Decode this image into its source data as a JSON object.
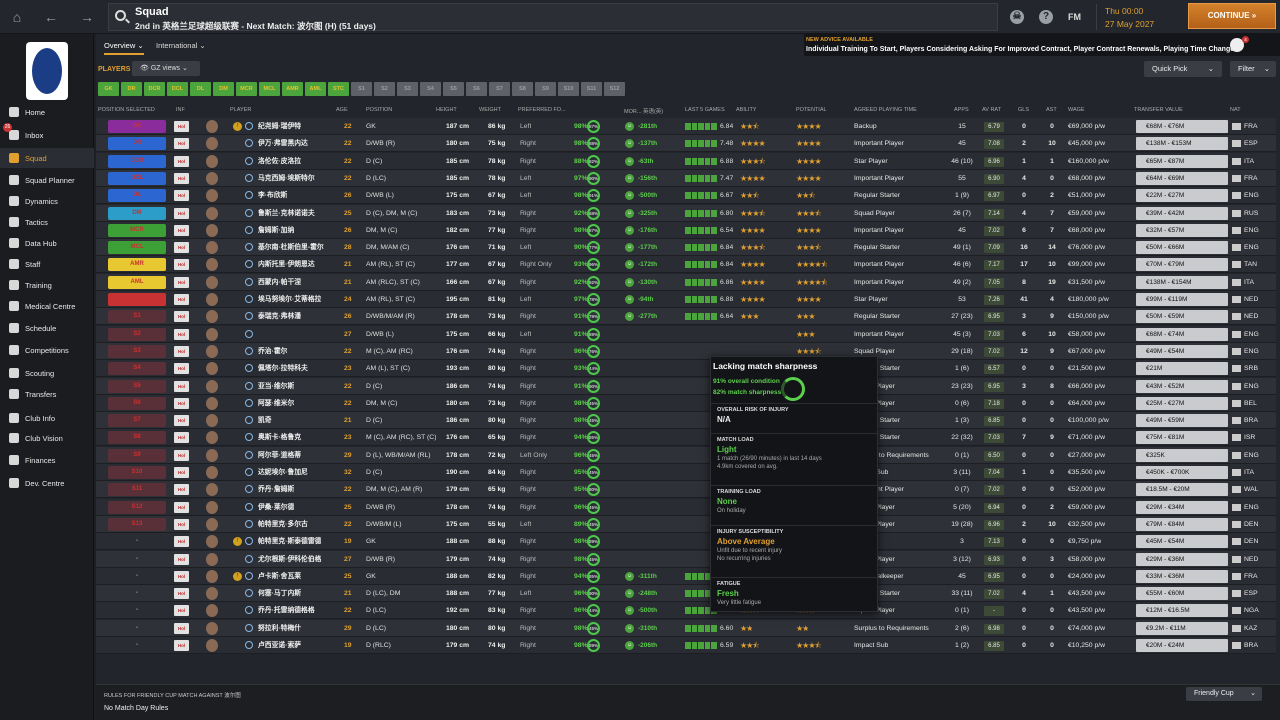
{
  "topbar": {
    "title": "Squad",
    "subtitle": "2nd in 英格兰足球超级联赛 - Next Match: 波尔图 (H) (51 days)",
    "fm": "FM",
    "time": "Thu 00:00",
    "date": "27 May 2027",
    "continue": "CONTINUE"
  },
  "sidebar": {
    "inbox_badge": "26",
    "items": [
      "Home",
      "Inbox",
      "Squad",
      "Squad Planner",
      "Dynamics",
      "Tactics",
      "Data Hub",
      "Staff",
      "Training",
      "Medical Centre",
      "Schedule",
      "Competitions",
      "Scouting",
      "Transfers",
      "Club Info",
      "Club Vision",
      "Finances",
      "Dev. Centre"
    ]
  },
  "tabs": {
    "overview": "Overview",
    "international": "International"
  },
  "news": {
    "header": "NEW ADVICE AVAILABLE",
    "text": "Individual Training To Start, Players Considering Asking For Improved Contract, Player Contract Renewals, Playing Time Changes",
    "badge": "4"
  },
  "players_label": "PLAYERS",
  "views": "GZ views",
  "quick_pick": "Quick Pick",
  "filter": "Filter",
  "pos_chips": [
    {
      "label": "GK",
      "on": true
    },
    {
      "label": "DR",
      "on": true
    },
    {
      "label": "DCR",
      "on": true
    },
    {
      "label": "DCL",
      "on": true
    },
    {
      "label": "DL",
      "on": true
    },
    {
      "label": "DM",
      "on": true
    },
    {
      "label": "MCR",
      "on": true
    },
    {
      "label": "MCL",
      "on": true
    },
    {
      "label": "AMR",
      "on": true
    },
    {
      "label": "AML",
      "on": true
    },
    {
      "label": "STC",
      "on": true
    },
    {
      "label": "S1",
      "on": false
    },
    {
      "label": "S2",
      "on": false
    },
    {
      "label": "S3",
      "on": false
    },
    {
      "label": "S4",
      "on": false
    },
    {
      "label": "S5",
      "on": false
    },
    {
      "label": "S6",
      "on": false
    },
    {
      "label": "S7",
      "on": false
    },
    {
      "label": "S8",
      "on": false
    },
    {
      "label": "S9",
      "on": false
    },
    {
      "label": "S10",
      "on": false
    },
    {
      "label": "S11",
      "on": false
    },
    {
      "label": "S12",
      "on": false
    }
  ],
  "headers": {
    "selected": "POSITION SELECTED",
    "inf": "INF",
    "player": "PLAYER",
    "age": "AGE",
    "position": "POSITION",
    "height": "HEIGHT",
    "weight": "WEIGHT",
    "foot": "PREFERRED FO...",
    "mor": "MOR... 英语(英)",
    "last5": "LAST 5 GAMES",
    "ability": "ABILITY",
    "potential": "POTENTIAL",
    "role": "AGREED PLAYING TIME",
    "apps": "APPS",
    "avrat": "AV RAT",
    "gls": "GLS",
    "ast": "AST",
    "wage": "WAGE",
    "tv": "TRANSFER VALUE",
    "nat": "NAT"
  },
  "rows": [
    {
      "sel": "GK",
      "name": "纪尧姆·瑞伊特",
      "age": "22",
      "pos": "GK",
      "ht": "187 cm",
      "wt": "86 kg",
      "foot": "Left",
      "cond": "98%",
      "sharp": "87%",
      "mor": "-281th",
      "avr": "6.84",
      "ab": "★★⯪",
      "pot": "★★★★",
      "role": "Backup",
      "apps": "15",
      "rat": "6.79",
      "gls": "0",
      "ast": "0",
      "wage": "€69,000 p/w",
      "tv": "€68M - €76M",
      "nat": "FRA"
    },
    {
      "sel": "DR",
      "name": "伊万·弗雷黑内达",
      "age": "22",
      "pos": "D/WB (R)",
      "ht": "180 cm",
      "wt": "75 kg",
      "foot": "Right",
      "cond": "98%",
      "sharp": "88%",
      "mor": "-137th",
      "avr": "7.48",
      "ab": "★★★★",
      "pot": "★★★★",
      "role": "Important Player",
      "apps": "45",
      "rat": "7.08",
      "gls": "2",
      "ast": "10",
      "wage": "€45,000 p/w",
      "tv": "€138M - €153M",
      "nat": "ESP"
    },
    {
      "sel": "DCR",
      "name": "洛伦佐·皮洛拉",
      "age": "22",
      "pos": "D (C)",
      "ht": "185 cm",
      "wt": "78 kg",
      "foot": "Right",
      "cond": "88%",
      "sharp": "82%",
      "mor": "-63th",
      "avr": "6.88",
      "ab": "★★★⯪",
      "pot": "★★★★",
      "role": "Star Player",
      "apps": "46 (10)",
      "rat": "6.96",
      "gls": "1",
      "ast": "1",
      "wage": "€160,000 p/w",
      "tv": "€65M - €87M",
      "nat": "ITA"
    },
    {
      "sel": "DCL",
      "name": "马克西姆·埃斯特尔",
      "age": "22",
      "pos": "D (LC)",
      "ht": "185 cm",
      "wt": "78 kg",
      "foot": "Left",
      "cond": "97%",
      "sharp": "90%",
      "mor": "-156th",
      "avr": "7.47",
      "ab": "★★★★",
      "pot": "★★★★",
      "role": "Important Player",
      "apps": "55",
      "rat": "6.90",
      "gls": "4",
      "ast": "0",
      "wage": "€68,000 p/w",
      "tv": "€64M - €69M",
      "nat": "FRA"
    },
    {
      "sel": "DL",
      "name": "李·布欣斯",
      "age": "26",
      "pos": "D/WB (L)",
      "ht": "175 cm",
      "wt": "67 kg",
      "foot": "Left",
      "cond": "98%",
      "sharp": "91%",
      "mor": "-500th",
      "avr": "6.67",
      "ab": "★★⯪",
      "pot": "★★⯪",
      "role": "Regular Starter",
      "apps": "1 (9)",
      "rat": "6.97",
      "gls": "0",
      "ast": "2",
      "wage": "€51,000 p/w",
      "tv": "€22M - €27M",
      "nat": "ENG"
    },
    {
      "sel": "DM",
      "name": "鲁斯兰·克林诺诺夫",
      "age": "25",
      "pos": "D (C), DM, M (C)",
      "ht": "183 cm",
      "wt": "73 kg",
      "foot": "Right",
      "cond": "92%",
      "sharp": "68%",
      "mor": "-325th",
      "avr": "6.80",
      "ab": "★★★⯪",
      "pot": "★★★⯪",
      "role": "Squad Player",
      "apps": "26 (7)",
      "rat": "7.14",
      "gls": "4",
      "ast": "7",
      "wage": "€59,000 p/w",
      "tv": "€39M - €42M",
      "nat": "RUS"
    },
    {
      "sel": "MCR",
      "name": "詹姆斯·加纳",
      "age": "26",
      "pos": "DM, M (C)",
      "ht": "182 cm",
      "wt": "77 kg",
      "foot": "Right",
      "cond": "98%",
      "sharp": "87%",
      "mor": "-176th",
      "avr": "6.54",
      "ab": "★★★★",
      "pot": "★★★★",
      "role": "Important Player",
      "apps": "45",
      "rat": "7.02",
      "gls": "6",
      "ast": "7",
      "wage": "€68,000 p/w",
      "tv": "€32M - €57M",
      "nat": "ENG"
    },
    {
      "sel": "MCL",
      "name": "基尔南·杜斯伯里-霍尔",
      "age": "28",
      "pos": "DM, M/AM (C)",
      "ht": "176 cm",
      "wt": "71 kg",
      "foot": "Left",
      "cond": "90%",
      "sharp": "77%",
      "mor": "-177th",
      "avr": "6.84",
      "ab": "★★★⯪",
      "pot": "★★★⯪",
      "role": "Regular Starter",
      "apps": "49 (1)",
      "rat": "7.09",
      "gls": "16",
      "ast": "14",
      "wage": "€76,000 p/w",
      "tv": "€50M - €66M",
      "nat": "ENG"
    },
    {
      "sel": "AMR",
      "name": "内斯托里·伊朗恩达",
      "age": "21",
      "pos": "AM (RL), ST (C)",
      "ht": "177 cm",
      "wt": "67 kg",
      "foot": "Right Only",
      "cond": "93%",
      "sharp": "96%",
      "mor": "-172th",
      "avr": "6.84",
      "ab": "★★★★",
      "pot": "★★★★⯪",
      "role": "Important Player",
      "apps": "46 (6)",
      "rat": "7.17",
      "gls": "17",
      "ast": "10",
      "wage": "€99,000 p/w",
      "tv": "€70M - €79M",
      "nat": "TAN"
    },
    {
      "sel": "AML",
      "name": "西蒙内·帕干涅",
      "age": "21",
      "pos": "AM (RLC), ST (C)",
      "ht": "166 cm",
      "wt": "67 kg",
      "foot": "Right",
      "cond": "92%",
      "sharp": "92%",
      "mor": "-130th",
      "avr": "6.86",
      "ab": "★★★★",
      "pot": "★★★★⯪",
      "role": "Important Player",
      "apps": "49 (2)",
      "rat": "7.05",
      "gls": "8",
      "ast": "19",
      "wage": "€31,500 p/w",
      "tv": "€138M - €154M",
      "nat": "ITA"
    },
    {
      "sel": "STC",
      "name": "埃马努埃尔·艾蒂格拉",
      "age": "24",
      "pos": "AM (RL), ST (C)",
      "ht": "195 cm",
      "wt": "81 kg",
      "foot": "Left",
      "cond": "97%",
      "sharp": "78%",
      "mor": "-94th",
      "avr": "6.88",
      "ab": "★★★★",
      "pot": "★★★★",
      "role": "Star Player",
      "apps": "53",
      "rat": "7.26",
      "gls": "41",
      "ast": "4",
      "wage": "€180,000 p/w",
      "tv": "€99M - €119M",
      "nat": "NED"
    },
    {
      "sel": "S1",
      "name": "泰瑞克·弗林潘",
      "age": "26",
      "pos": "D/WB/M/AM (R)",
      "ht": "178 cm",
      "wt": "73 kg",
      "foot": "Right",
      "cond": "91%",
      "sharp": "79%",
      "mor": "-277th",
      "avr": "6.64",
      "ab": "★★★",
      "pot": "★★★",
      "role": "Regular Starter",
      "apps": "27 (23)",
      "rat": "6.95",
      "gls": "3",
      "ast": "9",
      "wage": "€150,000 p/w",
      "tv": "€50M - €59M",
      "nat": "NED"
    },
    {
      "sel": "S2",
      "name": "",
      "age": "27",
      "pos": "D/WB (L)",
      "ht": "175 cm",
      "wt": "66 kg",
      "foot": "Left",
      "cond": "91%",
      "sharp": "89%",
      "mor": "",
      "avr": "",
      "ab": "",
      "pot": "★★★",
      "role": "Important Player",
      "apps": "45 (3)",
      "rat": "7.03",
      "gls": "6",
      "ast": "10",
      "wage": "€58,000 p/w",
      "tv": "€68M - €74M",
      "nat": "ENG"
    },
    {
      "sel": "S3",
      "name": "乔治·霍尔",
      "age": "22",
      "pos": "M (C), AM (RC)",
      "ht": "176 cm",
      "wt": "74 kg",
      "foot": "Right",
      "cond": "96%",
      "sharp": "76%",
      "mor": "",
      "avr": "",
      "ab": "",
      "pot": "★★★⯪",
      "role": "Squad Player",
      "apps": "29 (18)",
      "rat": "7.02",
      "gls": "12",
      "ast": "9",
      "wage": "€67,000 p/w",
      "tv": "€49M - €54M",
      "nat": "ENG"
    },
    {
      "sel": "S4",
      "name": "佩塔尔·拉特科夫",
      "age": "23",
      "pos": "AM (L), ST (C)",
      "ht": "193 cm",
      "wt": "80 kg",
      "foot": "Right",
      "cond": "93%",
      "sharp": "44%",
      "mor": "",
      "avr": "",
      "ab": "",
      "pot": "★★⯪",
      "role": "Regular Starter",
      "apps": "1 (6)",
      "rat": "6.57",
      "gls": "0",
      "ast": "0",
      "wage": "€21,500 p/w",
      "tv": "€21M",
      "nat": "SRB"
    },
    {
      "sel": "S5",
      "name": "亚当·维尔斯",
      "age": "22",
      "pos": "D (C)",
      "ht": "186 cm",
      "wt": "74 kg",
      "foot": "Right",
      "cond": "91%",
      "sharp": "90%",
      "mor": "",
      "avr": "",
      "ab": "",
      "pot": "★★★⯪",
      "role": "Squad Player",
      "apps": "23 (23)",
      "rat": "6.95",
      "gls": "3",
      "ast": "8",
      "wage": "€66,000 p/w",
      "tv": "€43M - €52M",
      "nat": "ENG"
    },
    {
      "sel": "S6",
      "name": "阿瑟·维米尔",
      "age": "22",
      "pos": "DM, M (C)",
      "ht": "180 cm",
      "wt": "73 kg",
      "foot": "Right",
      "cond": "98%",
      "sharp": "45%",
      "mor": "",
      "avr": "",
      "ab": "",
      "pot": "★★★⯪",
      "role": "Squad Player",
      "apps": "0 (6)",
      "rat": "7.18",
      "gls": "0",
      "ast": "0",
      "wage": "€64,000 p/w",
      "tv": "€25M - €27M",
      "nat": "BEL"
    },
    {
      "sel": "S7",
      "name": "凯奇",
      "age": "21",
      "pos": "D (C)",
      "ht": "186 cm",
      "wt": "80 kg",
      "foot": "Right",
      "cond": "98%",
      "sharp": "45%",
      "mor": "",
      "avr": "",
      "ab": "",
      "pot": "★★★★",
      "role": "Regular Starter",
      "apps": "1 (3)",
      "rat": "6.85",
      "gls": "0",
      "ast": "0",
      "wage": "€100,000 p/w",
      "tv": "€49M - €59M",
      "nat": "BRA"
    },
    {
      "sel": "S8",
      "name": "奥斯卡·格鲁克",
      "age": "23",
      "pos": "M (C), AM (RC), ST (C)",
      "ht": "176 cm",
      "wt": "65 kg",
      "foot": "Right",
      "cond": "94%",
      "sharp": "85%",
      "mor": "",
      "avr": "",
      "ab": "",
      "pot": "★★★",
      "role": "Regular Starter",
      "apps": "22 (32)",
      "rat": "7.03",
      "gls": "7",
      "ast": "9",
      "wage": "€71,000 p/w",
      "tv": "€75M - €81M",
      "nat": "ISR"
    },
    {
      "sel": "S9",
      "name": "阿尔菲·道格蒂",
      "age": "29",
      "pos": "D (L), WB/M/AM (RL)",
      "ht": "178 cm",
      "wt": "72 kg",
      "foot": "Left Only",
      "cond": "96%",
      "sharp": "45%",
      "mor": "",
      "avr": "",
      "ab": "",
      "pot": "★★",
      "role": "Surplus to Requirements",
      "apps": "0 (1)",
      "rat": "6.50",
      "gls": "0",
      "ast": "0",
      "wage": "€27,000 p/w",
      "tv": "€325K",
      "nat": "ENG"
    },
    {
      "sel": "S10",
      "name": "达妮埃尔·鲁加尼",
      "age": "32",
      "pos": "D (C)",
      "ht": "190 cm",
      "wt": "84 kg",
      "foot": "Right",
      "cond": "95%",
      "sharp": "45%",
      "mor": "",
      "avr": "",
      "ab": "",
      "pot": "★★⯪",
      "role": "Impact Sub",
      "apps": "3 (11)",
      "rat": "7.04",
      "gls": "1",
      "ast": "0",
      "wage": "€35,500 p/w",
      "tv": "€450K - €700K",
      "nat": "ITA"
    },
    {
      "sel": "S11",
      "name": "乔丹·詹姆斯",
      "age": "22",
      "pos": "DM, M (C), AM (R)",
      "ht": "179 cm",
      "wt": "65 kg",
      "foot": "Right",
      "cond": "95%",
      "sharp": "80%",
      "mor": "",
      "avr": "",
      "ab": "",
      "pot": "★★★",
      "role": "Important Player",
      "apps": "0 (7)",
      "rat": "7.02",
      "gls": "0",
      "ast": "0",
      "wage": "€52,000 p/w",
      "tv": "€18.5M - €20M",
      "nat": "WAL"
    },
    {
      "sel": "S12",
      "name": "伊桑·莱尔德",
      "age": "25",
      "pos": "D/WB (R)",
      "ht": "178 cm",
      "wt": "74 kg",
      "foot": "Right",
      "cond": "96%",
      "sharp": "45%",
      "mor": "",
      "avr": "",
      "ab": "",
      "pot": "★★★",
      "role": "Squad Player",
      "apps": "5 (20)",
      "rat": "6.94",
      "gls": "0",
      "ast": "2",
      "wage": "€59,000 p/w",
      "tv": "€29M - €34M",
      "nat": "ENG"
    },
    {
      "sel": "S13",
      "name": "帕特里克·多尔古",
      "age": "22",
      "pos": "D/WB/M (L)",
      "ht": "175 cm",
      "wt": "55 kg",
      "foot": "Left",
      "cond": "89%",
      "sharp": "45%",
      "mor": "",
      "avr": "",
      "ab": "",
      "pot": "★★★★",
      "role": "Squad Player",
      "apps": "19 (28)",
      "rat": "6.96",
      "gls": "2",
      "ast": "10",
      "wage": "€32,500 p/w",
      "tv": "€79M - €84M",
      "nat": "DEN"
    },
    {
      "sel": "-",
      "name": "帕特里克·斯泰德雷德",
      "age": "19",
      "pos": "GK",
      "ht": "188 cm",
      "wt": "88 kg",
      "foot": "Right",
      "cond": "98%",
      "sharp": "89%",
      "mor": "",
      "avr": "",
      "ab": "",
      "pot": "★★★★⯪",
      "role": "Backup",
      "apps": "3",
      "rat": "7.13",
      "gls": "0",
      "ast": "0",
      "wage": "€9,750 p/w",
      "tv": "€45M - €54M",
      "nat": "DEN"
    },
    {
      "sel": "-",
      "name": "尤尔根斯·伊科伦伯格",
      "age": "27",
      "pos": "D/WB (R)",
      "ht": "179 cm",
      "wt": "74 kg",
      "foot": "Right",
      "cond": "98%",
      "sharp": "45%",
      "mor": "",
      "avr": "",
      "ab": "",
      "pot": "★★★",
      "role": "Squad Player",
      "apps": "3 (12)",
      "rat": "6.93",
      "gls": "0",
      "ast": "3",
      "wage": "€58,000 p/w",
      "tv": "€29M - €36M",
      "nat": "NED"
    },
    {
      "sel": "-",
      "name": "卢卡斯·舍瓦莱",
      "age": "25",
      "pos": "GK",
      "ht": "188 cm",
      "wt": "82 kg",
      "foot": "Right",
      "cond": "94%",
      "sharp": "85%",
      "mor": "-311th",
      "avr": "6.90",
      "ab": "★★★⯪",
      "pot": "★★★⯪",
      "role": "Cup Goalkeeper",
      "apps": "45",
      "rat": "6.95",
      "gls": "0",
      "ast": "0",
      "wage": "€24,000 p/w",
      "tv": "€33M - €36M",
      "nat": "FRA"
    },
    {
      "sel": "-",
      "name": "何塞·马丁内斯",
      "age": "21",
      "pos": "D (LC), DM",
      "ht": "188 cm",
      "wt": "77 kg",
      "foot": "Left",
      "cond": "96%",
      "sharp": "90%",
      "mor": "-248th",
      "avr": "6.73",
      "ab": "★★★",
      "pot": "★★★⯪",
      "role": "Regular Starter",
      "apps": "33 (11)",
      "rat": "7.02",
      "gls": "4",
      "ast": "1",
      "wage": "€43,500 p/w",
      "tv": "€55M - €60M",
      "nat": "ESP"
    },
    {
      "sel": "-",
      "name": "乔丹·托雷纳德格格",
      "age": "22",
      "pos": "D (LC)",
      "ht": "192 cm",
      "wt": "83 kg",
      "foot": "Right",
      "cond": "96%",
      "sharp": "44%",
      "mor": "-500th",
      "avr": "7.08",
      "ab": "★★⯪",
      "pot": "★★★",
      "role": "Squad Player",
      "apps": "0 (1)",
      "rat": "-",
      "gls": "0",
      "ast": "0",
      "wage": "€43,500 p/w",
      "tv": "€12M - €16.5M",
      "nat": "NGA"
    },
    {
      "sel": "-",
      "name": "努拉利·特梅什",
      "age": "29",
      "pos": "D (LC)",
      "ht": "180 cm",
      "wt": "80 kg",
      "foot": "Right",
      "cond": "98%",
      "sharp": "45%",
      "mor": "-310th",
      "avr": "6.60",
      "ab": "★★",
      "pot": "★★",
      "role": "Surplus to Requirements",
      "apps": "2 (6)",
      "rat": "6.98",
      "gls": "0",
      "ast": "0",
      "wage": "€74,000 p/w",
      "tv": "€9.2M - €11M",
      "nat": "KAZ"
    },
    {
      "sel": "-",
      "name": "卢西亚诺·索萨",
      "age": "19",
      "pos": "D (RLC)",
      "ht": "179 cm",
      "wt": "74 kg",
      "foot": "Right",
      "cond": "98%",
      "sharp": "89%",
      "mor": "-206th",
      "avr": "6.59",
      "ab": "★★⯪",
      "pot": "★★★⯪",
      "role": "Impact Sub",
      "apps": "1 (2)",
      "rat": "6.85",
      "gls": "0",
      "ast": "0",
      "wage": "€10,250 p/w",
      "tv": "€20M - €24M",
      "nat": "BRA"
    }
  ],
  "tooltip": {
    "title": "Lacking match sharpness",
    "cond": "91% overall condition",
    "sharp": "82% match sharpness",
    "risk_h": "OVERALL RISK OF INJURY",
    "risk_v": "N/A",
    "load_h": "MATCH LOAD",
    "load_v": "Light",
    "load_n1": "1 match (26/90 minutes) in last 14 days",
    "load_n2": "4.9km covered on avg.",
    "train_h": "TRAINING LOAD",
    "train_v": "None",
    "train_n": "On holiday",
    "sus_h": "INJURY SUSCEPTIBILITY",
    "sus_v": "Above Average",
    "sus_n1": "Unfit due to recent injury",
    "sus_n2": "No recurring injuries",
    "fat_h": "FATIGUE",
    "fat_v": "Fresh",
    "fat_n": "Very little fatigue"
  },
  "footer": {
    "rules_header": "RULES FOR FRIENDLY CUP MATCH AGAINST 波尔图",
    "rules_value": "No Match Day Rules",
    "comp": "Friendly Cup"
  },
  "colors": {
    "accent": "#e0a030",
    "green": "#4ba53c",
    "continue": "#c8762a"
  }
}
